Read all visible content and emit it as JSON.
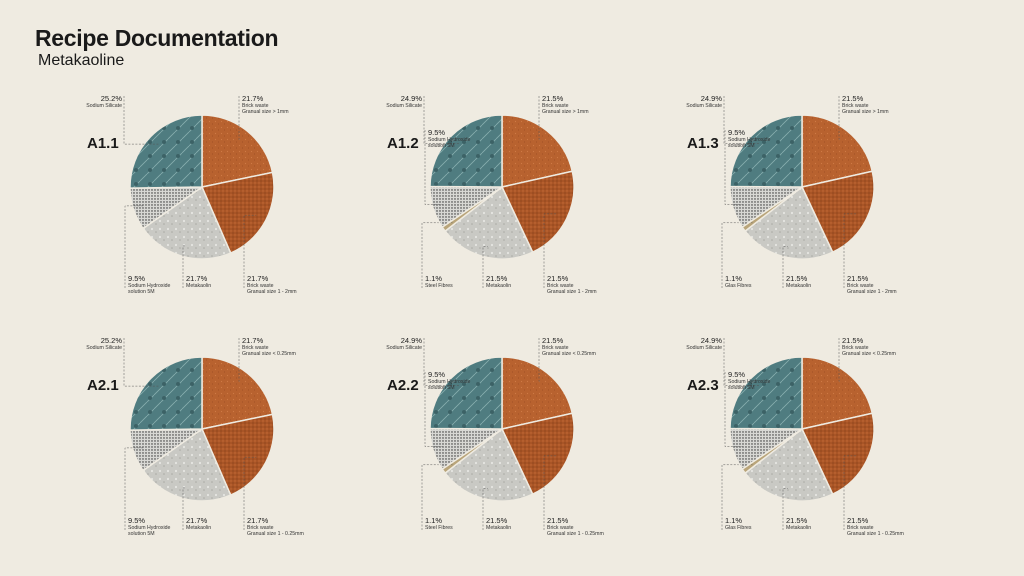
{
  "page": {
    "title": "Recipe Documentation",
    "subtitle": "Metakaoline"
  },
  "colors": {
    "brick": "#b8622f",
    "brick_dark": "#a95526",
    "silicate": "#4f7c80",
    "metakaolin": "#c9c9c4",
    "hydroxide": "#8c8c88",
    "fibres": "#b9a57a",
    "leader": "#555555"
  },
  "chart_data": [
    {
      "type": "pie",
      "id": "A1.1",
      "slices": [
        {
          "key": "brick1",
          "value": 21.7,
          "label": "21.7%",
          "name": "Brick waste",
          "desc": "Granual size > 1mm"
        },
        {
          "key": "brick2",
          "value": 21.7,
          "label": "21.7%",
          "name": "Brick waste",
          "desc": "Granual size 1 - 2mm"
        },
        {
          "key": "meta",
          "value": 21.7,
          "label": "21.7%",
          "name": "Metakaolin",
          "desc": ""
        },
        {
          "key": "hyd",
          "value": 9.5,
          "label": "9.5%",
          "name": "Sodium Hydroxide",
          "desc": "solution 5M"
        },
        {
          "key": "sil",
          "value": 25.2,
          "label": "25.2%",
          "name": "Sodium Silicate",
          "desc": ""
        }
      ]
    },
    {
      "type": "pie",
      "id": "A1.2",
      "slices": [
        {
          "key": "brick1",
          "value": 21.5,
          "label": "21.5%",
          "name": "Brick waste",
          "desc": "Granual size > 1mm"
        },
        {
          "key": "brick2",
          "value": 21.5,
          "label": "21.5%",
          "name": "Brick waste",
          "desc": "Granual size 1 - 2mm"
        },
        {
          "key": "meta",
          "value": 21.5,
          "label": "21.5%",
          "name": "Metakaolin",
          "desc": ""
        },
        {
          "key": "fib",
          "value": 1.1,
          "label": "1.1%",
          "name": "Steel Fibres",
          "desc": ""
        },
        {
          "key": "hyd",
          "value": 9.5,
          "label": "9.5%",
          "name": "Sodium Hydroxide",
          "desc": "solution 5M"
        },
        {
          "key": "sil",
          "value": 24.9,
          "label": "24.9%",
          "name": "Sodium Silicate",
          "desc": ""
        }
      ]
    },
    {
      "type": "pie",
      "id": "A1.3",
      "slices": [
        {
          "key": "brick1",
          "value": 21.5,
          "label": "21.5%",
          "name": "Brick waste",
          "desc": "Granual size > 1mm"
        },
        {
          "key": "brick2",
          "value": 21.5,
          "label": "21.5%",
          "name": "Brick waste",
          "desc": "Granual size 1 - 2mm"
        },
        {
          "key": "meta",
          "value": 21.5,
          "label": "21.5%",
          "name": "Metakaolin",
          "desc": ""
        },
        {
          "key": "fib",
          "value": 1.1,
          "label": "1.1%",
          "name": "Glas Fibres",
          "desc": ""
        },
        {
          "key": "hyd",
          "value": 9.5,
          "label": "9.5%",
          "name": "Sodium Hydroxide",
          "desc": "solution 5M"
        },
        {
          "key": "sil",
          "value": 24.9,
          "label": "24.9%",
          "name": "Sodium Silicate",
          "desc": ""
        }
      ]
    },
    {
      "type": "pie",
      "id": "A2.1",
      "slices": [
        {
          "key": "brick1",
          "value": 21.7,
          "label": "21.7%",
          "name": "Brick waste",
          "desc": "Granual size < 0.25mm"
        },
        {
          "key": "brick2",
          "value": 21.7,
          "label": "21.7%",
          "name": "Brick waste",
          "desc": "Granual size 1 - 0.25mm"
        },
        {
          "key": "meta",
          "value": 21.7,
          "label": "21.7%",
          "name": "Metakaolin",
          "desc": ""
        },
        {
          "key": "hyd",
          "value": 9.5,
          "label": "9.5%",
          "name": "Sodium Hydroxide",
          "desc": "solution 5M"
        },
        {
          "key": "sil",
          "value": 25.2,
          "label": "25.2%",
          "name": "Sodium Silicate",
          "desc": ""
        }
      ]
    },
    {
      "type": "pie",
      "id": "A2.2",
      "slices": [
        {
          "key": "brick1",
          "value": 21.5,
          "label": "21.5%",
          "name": "Brick waste",
          "desc": "Granual size < 0.25mm"
        },
        {
          "key": "brick2",
          "value": 21.5,
          "label": "21.5%",
          "name": "Brick waste",
          "desc": "Granual size 1 - 0.25mm"
        },
        {
          "key": "meta",
          "value": 21.5,
          "label": "21.5%",
          "name": "Metakaolin",
          "desc": ""
        },
        {
          "key": "fib",
          "value": 1.1,
          "label": "1.1%",
          "name": "Steel Fibres",
          "desc": ""
        },
        {
          "key": "hyd",
          "value": 9.5,
          "label": "9.5%",
          "name": "Sodium Hydroxide",
          "desc": "solution 5M"
        },
        {
          "key": "sil",
          "value": 24.9,
          "label": "24.9%",
          "name": "Sodium Silicate",
          "desc": ""
        }
      ]
    },
    {
      "type": "pie",
      "id": "A2.3",
      "slices": [
        {
          "key": "brick1",
          "value": 21.5,
          "label": "21.5%",
          "name": "Brick waste",
          "desc": "Granual size < 0.25mm"
        },
        {
          "key": "brick2",
          "value": 21.5,
          "label": "21.5%",
          "name": "Brick waste",
          "desc": "Granual size 1 - 0.25mm"
        },
        {
          "key": "meta",
          "value": 21.5,
          "label": "21.5%",
          "name": "Metakaolin",
          "desc": ""
        },
        {
          "key": "fib",
          "value": 1.1,
          "label": "1.1%",
          "name": "Glas Fibres",
          "desc": ""
        },
        {
          "key": "hyd",
          "value": 9.5,
          "label": "9.5%",
          "name": "Sodium Hydroxide",
          "desc": "solution 5M"
        },
        {
          "key": "sil",
          "value": 24.9,
          "label": "24.9%",
          "name": "Sodium Silicate",
          "desc": ""
        }
      ]
    }
  ]
}
